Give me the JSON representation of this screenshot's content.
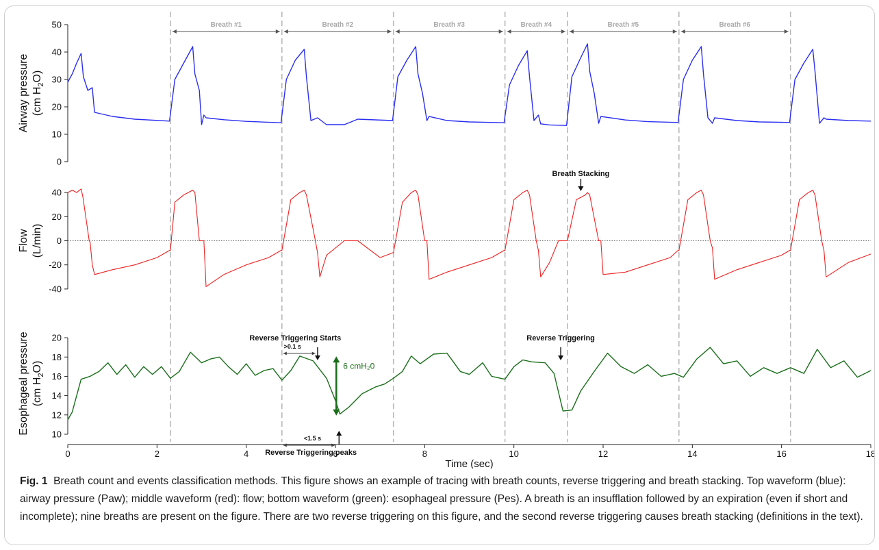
{
  "figure": {
    "caption_label": "Fig. 1",
    "caption_text": "Breath count and events classification methods. This figure shows an example of tracing with breath counts, reverse triggering and breath stacking. Top waveform (blue): airway pressure (Paw); middle waveform (red): flow; bottom waveform (green): esophageal pressure (Pes). A breath is an insufflation followed by an expiration (even if short and incomplete); nine breaths are present on the figure. There are two reverse triggering on this figure, and the second reverse triggering causes breath stacking (definitions in the text)."
  },
  "chart_data": {
    "type": "line",
    "xlabel": "Time (sec)",
    "xlim": [
      0,
      18
    ],
    "xticks": [
      0,
      2,
      4,
      6,
      8,
      10,
      12,
      14,
      16,
      18
    ],
    "breath_onsets_s": [
      2.3,
      4.8,
      7.3,
      9.8,
      11.2,
      13.7,
      16.2
    ],
    "breath_labels": [
      {
        "label": "Breath #1",
        "start": 2.3,
        "end": 4.8
      },
      {
        "label": "Breath #2",
        "start": 4.8,
        "end": 7.3
      },
      {
        "label": "Breath #3",
        "start": 7.3,
        "end": 9.8
      },
      {
        "label": "Breath #4",
        "start": 9.8,
        "end": 11.2
      },
      {
        "label": "Breath #5",
        "start": 11.2,
        "end": 13.7
      },
      {
        "label": "Breath #6",
        "start": 13.7,
        "end": 16.2
      }
    ],
    "panels": [
      {
        "key": "paw",
        "ylabel_main": "Airway pressure",
        "ylabel_unit": "(cm H",
        "ylabel_sub": "2",
        "ylabel_end": "O)",
        "color": "#2a2ef0",
        "ylim": [
          0,
          50
        ],
        "yticks": [
          0,
          10,
          20,
          30,
          40,
          50
        ],
        "series": {
          "name": "Paw",
          "t": [
            0,
            0.1,
            0.2,
            0.3,
            0.35,
            0.45,
            0.55,
            0.6,
            1.0,
            1.5,
            2.28,
            2.4,
            2.6,
            2.8,
            2.85,
            2.95,
            3.0,
            3.05,
            3.1,
            3.5,
            4.0,
            4.78,
            4.9,
            5.1,
            5.3,
            5.35,
            5.45,
            5.6,
            5.8,
            6.2,
            6.5,
            7.28,
            7.4,
            7.6,
            7.8,
            7.85,
            7.95,
            8.05,
            8.1,
            8.5,
            9.0,
            9.78,
            9.9,
            10.1,
            10.3,
            10.35,
            10.45,
            10.55,
            10.6,
            10.8,
            11.18,
            11.3,
            11.5,
            11.65,
            11.7,
            11.8,
            11.9,
            11.95,
            12.5,
            13.0,
            13.68,
            13.8,
            14.0,
            14.2,
            14.25,
            14.35,
            14.45,
            14.5,
            15.0,
            15.5,
            16.18,
            16.3,
            16.5,
            16.7,
            16.75,
            16.85,
            16.95,
            17.0,
            17.5,
            18.0
          ],
          "v": [
            29,
            32,
            36,
            39.5,
            31,
            26,
            27,
            18,
            16.5,
            15.5,
            14.8,
            30,
            36,
            42,
            32,
            26,
            13.5,
            17,
            16,
            15.3,
            14.7,
            14.2,
            30,
            37,
            41,
            31,
            15,
            16,
            13.5,
            13.5,
            15.5,
            15,
            31,
            37,
            42,
            32,
            25,
            15,
            16.5,
            15,
            14.5,
            14.2,
            28,
            35,
            40.5,
            31,
            15,
            17,
            13.8,
            13.4,
            13.2,
            31,
            38,
            43,
            33,
            25,
            14,
            16.5,
            15.2,
            14.6,
            14.3,
            30,
            37,
            42,
            32,
            16,
            14,
            16,
            15,
            14.5,
            14.3,
            30,
            36,
            41,
            33,
            14,
            16,
            15.5,
            15,
            14.8
          ]
        }
      },
      {
        "key": "flow",
        "ylabel_main": "Flow",
        "ylabel_unit": "(L/min)",
        "color": "#ee2020",
        "ylim": [
          -48,
          48
        ],
        "yticks": [
          -40,
          -20,
          0,
          20,
          40
        ],
        "zero_line": true,
        "annotation": {
          "text": "Breath Stacking",
          "x": 11.5
        },
        "series": {
          "name": "Flow",
          "t": [
            0,
            0.1,
            0.2,
            0.3,
            0.34,
            0.48,
            0.5,
            0.55,
            0.6,
            1.0,
            1.5,
            2.0,
            2.28,
            2.3,
            2.4,
            2.6,
            2.8,
            2.85,
            2.95,
            3.05,
            3.1,
            3.5,
            4.0,
            4.5,
            4.78,
            4.8,
            5.0,
            5.2,
            5.3,
            5.35,
            5.55,
            5.6,
            5.65,
            5.8,
            6.2,
            6.5,
            7.0,
            7.28,
            7.3,
            7.5,
            7.7,
            7.8,
            7.85,
            8.0,
            8.05,
            8.1,
            8.5,
            9.0,
            9.5,
            9.78,
            9.8,
            10.0,
            10.2,
            10.3,
            10.35,
            10.5,
            10.55,
            10.6,
            10.8,
            11.0,
            11.18,
            11.2,
            11.4,
            11.6,
            11.65,
            11.7,
            11.9,
            11.95,
            12.0,
            12.5,
            13.0,
            13.5,
            13.68,
            13.7,
            13.9,
            14.1,
            14.2,
            14.25,
            14.4,
            14.45,
            14.5,
            15.0,
            15.5,
            16.0,
            16.18,
            16.2,
            16.4,
            16.6,
            16.7,
            16.75,
            16.9,
            16.95,
            17.0,
            17.5,
            18.0
          ],
          "v": [
            40,
            42,
            40,
            43,
            36,
            0,
            -1,
            -20,
            -28,
            -24,
            -20,
            -14,
            -8,
            -8,
            32,
            38,
            42,
            40,
            0,
            0,
            -38,
            -28,
            -20,
            -14,
            -8,
            -8,
            34,
            40,
            42,
            38,
            0,
            -10,
            -30,
            -12,
            0,
            0,
            -14,
            -10,
            -10,
            32,
            40,
            42,
            38,
            0,
            0,
            -32,
            -26,
            -20,
            -14,
            -8,
            -8,
            34,
            40,
            42,
            38,
            0,
            -8,
            -30,
            -18,
            0,
            0,
            0,
            34,
            38,
            40,
            38,
            0,
            0,
            -28,
            -26,
            -20,
            -14,
            -8,
            -8,
            34,
            40,
            42,
            38,
            0,
            -6,
            -32,
            -24,
            -18,
            -12,
            -8,
            -8,
            34,
            40,
            42,
            38,
            0,
            -8,
            -30,
            -18,
            -11
          ]
        }
      },
      {
        "key": "pes",
        "ylabel_main": "Esophageal pressure",
        "ylabel_unit": "(cm H",
        "ylabel_sub": "2",
        "ylabel_end": "O)",
        "color": "#1a6e1a",
        "ylim": [
          9.5,
          21
        ],
        "yticks": [
          10,
          12,
          14,
          16,
          18,
          20
        ],
        "annotations": [
          {
            "text": "Reverse Triggering Starts",
            "x": 5.6
          },
          {
            "text": ">0.1 s",
            "x1": 4.8,
            "x2": 5.55,
            "y": 17.8
          },
          {
            "text": "6 cmH₂0",
            "x": 6.05,
            "y_low": 12,
            "y_high": 18
          },
          {
            "text": "<1.5 s",
            "x1": 4.8,
            "x2": 6.05,
            "y": 10.8
          },
          {
            "text": "Reverse Triggering peaks",
            "x": 6.05
          },
          {
            "text": "Reverse Triggering",
            "x": 11.05
          }
        ],
        "series": {
          "name": "Pes",
          "t": [
            0,
            0.1,
            0.2,
            0.3,
            0.5,
            0.7,
            0.9,
            1.1,
            1.3,
            1.5,
            1.7,
            1.9,
            2.1,
            2.3,
            2.5,
            2.75,
            3.0,
            3.2,
            3.4,
            3.6,
            3.8,
            4.0,
            4.2,
            4.4,
            4.6,
            4.8,
            5.0,
            5.2,
            5.5,
            5.8,
            6.0,
            6.1,
            6.3,
            6.6,
            6.9,
            7.1,
            7.3,
            7.5,
            7.7,
            7.9,
            8.2,
            8.5,
            8.8,
            9.0,
            9.3,
            9.5,
            9.8,
            10.0,
            10.2,
            10.4,
            10.7,
            10.9,
            11.1,
            11.3,
            11.5,
            11.8,
            12.1,
            12.4,
            12.7,
            13.0,
            13.3,
            13.6,
            13.8,
            14.1,
            14.4,
            14.7,
            15.0,
            15.3,
            15.6,
            15.9,
            16.2,
            16.5,
            16.8,
            17.1,
            17.4,
            17.7,
            18.0
          ],
          "v": [
            11.5,
            12.3,
            14,
            15.7,
            16,
            16.5,
            17.4,
            16.2,
            17.2,
            15.9,
            17.0,
            16.2,
            17.0,
            15.8,
            16.5,
            18.5,
            17.4,
            17.8,
            18.0,
            17.0,
            16.2,
            17.3,
            16.1,
            16.6,
            16.8,
            15.6,
            16.6,
            18.1,
            17.6,
            15.8,
            13.5,
            12.1,
            12.8,
            14.2,
            14.9,
            15.2,
            15.8,
            16.5,
            18.1,
            17.3,
            18.3,
            18.4,
            16.5,
            16.2,
            17.4,
            16.0,
            15.7,
            17.0,
            17.7,
            17.5,
            17.4,
            16.3,
            12.4,
            12.5,
            14.5,
            16.5,
            18.4,
            17.0,
            16.3,
            17.2,
            16.0,
            16.3,
            15.9,
            17.8,
            19.0,
            17.3,
            17.6,
            16.0,
            16.9,
            16.3,
            16.9,
            16.3,
            18.8,
            16.9,
            17.6,
            15.9,
            16.6
          ]
        }
      }
    ]
  }
}
